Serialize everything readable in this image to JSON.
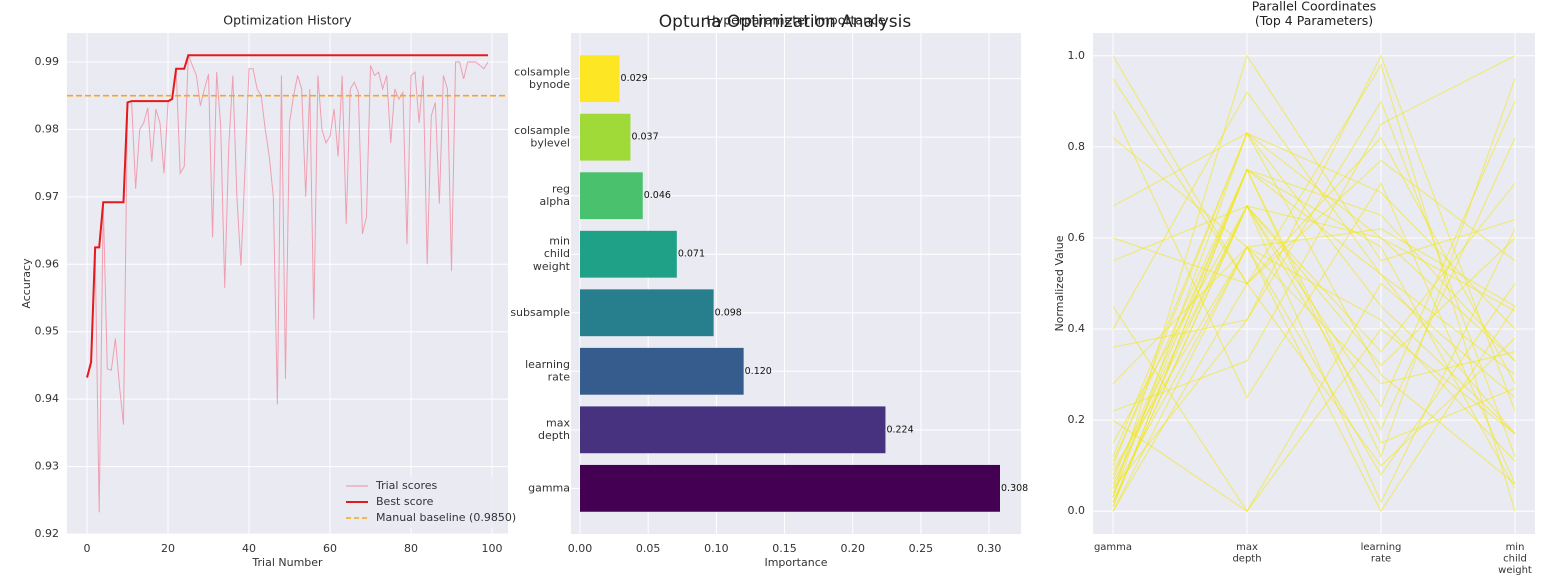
{
  "title": "Optuna Optimization Analysis",
  "chart_data": [
    {
      "type": "line",
      "title": "Optimization History",
      "xlabel": "Trial Number",
      "ylabel": "Accuracy",
      "xlim": [
        -4.95,
        103.95
      ],
      "xticks": [
        0,
        20,
        40,
        60,
        80,
        100
      ],
      "ylim": [
        0.92,
        0.9943
      ],
      "yticks": [
        0.92,
        0.93,
        0.94,
        0.95,
        0.96,
        0.97,
        0.98,
        0.99
      ],
      "grid": true,
      "x": [
        0,
        1,
        2,
        3,
        4,
        5,
        6,
        7,
        8,
        9,
        10,
        11,
        12,
        13,
        14,
        15,
        16,
        17,
        18,
        19,
        20,
        21,
        22,
        23,
        24,
        25,
        26,
        27,
        28,
        29,
        30,
        31,
        32,
        33,
        34,
        35,
        36,
        37,
        38,
        39,
        40,
        41,
        42,
        43,
        44,
        45,
        46,
        47,
        48,
        49,
        50,
        51,
        52,
        53,
        54,
        55,
        56,
        57,
        58,
        59,
        60,
        61,
        62,
        63,
        64,
        65,
        66,
        67,
        68,
        69,
        70,
        71,
        72,
        73,
        74,
        75,
        76,
        77,
        78,
        79,
        80,
        81,
        82,
        83,
        84,
        85,
        86,
        87,
        88,
        89,
        90,
        91,
        92,
        93,
        94,
        95,
        96,
        97,
        98,
        99
      ],
      "series": [
        {
          "name": "Trial scores",
          "color": "#f08ca0",
          "values": [
            0.9432,
            0.9455,
            0.9625,
            0.9232,
            0.9692,
            0.9445,
            0.9443,
            0.949,
            0.942,
            0.9362,
            0.984,
            0.9842,
            0.9712,
            0.98,
            0.981,
            0.9832,
            0.9752,
            0.983,
            0.981,
            0.9735,
            0.984,
            0.9845,
            0.989,
            0.9735,
            0.9745,
            0.991,
            0.9895,
            0.988,
            0.9835,
            0.986,
            0.9882,
            0.964,
            0.9885,
            0.9805,
            0.9565,
            0.9775,
            0.988,
            0.97,
            0.9598,
            0.974,
            0.989,
            0.989,
            0.986,
            0.985,
            0.98,
            0.976,
            0.97,
            0.9392,
            0.988,
            0.943,
            0.981,
            0.985,
            0.988,
            0.986,
            0.97,
            0.986,
            0.9518,
            0.988,
            0.98,
            0.978,
            0.979,
            0.983,
            0.976,
            0.988,
            0.966,
            0.986,
            0.987,
            0.9855,
            0.9645,
            0.967,
            0.9895,
            0.988,
            0.9885,
            0.986,
            0.988,
            0.978,
            0.986,
            0.9845,
            0.9855,
            0.963,
            0.988,
            0.9885,
            0.981,
            0.988,
            0.96,
            0.982,
            0.984,
            0.969,
            0.988,
            0.986,
            0.959,
            0.99,
            0.99,
            0.9875,
            0.99,
            0.99,
            0.99,
            0.9895,
            0.989,
            0.99
          ]
        },
        {
          "name": "Best score",
          "color": "#e31a1c",
          "values": [
            0.9432,
            0.9455,
            0.9625,
            0.9625,
            0.9692,
            0.9692,
            0.9692,
            0.9692,
            0.9692,
            0.9692,
            0.984,
            0.9842,
            0.9842,
            0.9842,
            0.9842,
            0.9842,
            0.9842,
            0.9842,
            0.9842,
            0.9842,
            0.9842,
            0.9845,
            0.989,
            0.989,
            0.989,
            0.991,
            0.991,
            0.991,
            0.991,
            0.991,
            0.991,
            0.991,
            0.991,
            0.991,
            0.991,
            0.991,
            0.991,
            0.991,
            0.991,
            0.991,
            0.991,
            0.991,
            0.991,
            0.991,
            0.991,
            0.991,
            0.991,
            0.991,
            0.991,
            0.991,
            0.991,
            0.991,
            0.991,
            0.991,
            0.991,
            0.991,
            0.991,
            0.991,
            0.991,
            0.991,
            0.991,
            0.991,
            0.991,
            0.991,
            0.991,
            0.991,
            0.991,
            0.991,
            0.991,
            0.991,
            0.991,
            0.991,
            0.991,
            0.991,
            0.991,
            0.991,
            0.991,
            0.991,
            0.991,
            0.991,
            0.991,
            0.991,
            0.991,
            0.991,
            0.991,
            0.991,
            0.991,
            0.991,
            0.991,
            0.991,
            0.991,
            0.991,
            0.991,
            0.991,
            0.991,
            0.991,
            0.991,
            0.991,
            0.991,
            0.991
          ]
        }
      ],
      "baseline": 0.985,
      "baseline_label": "Manual baseline (0.9850)",
      "baseline_color": "#f5a623",
      "legend": "lower right"
    },
    {
      "type": "barh",
      "title": "Hyperparameter Importance",
      "xlabel": "Importance",
      "categories": [
        "gamma",
        "max\ndepth",
        "learning\nrate",
        "subsample",
        "min\nchild\nweight",
        "reg\nalpha",
        "colsample\nbylevel",
        "colsample\nbynode"
      ],
      "values": [
        0.308,
        0.224,
        0.12,
        0.098,
        0.071,
        0.046,
        0.037,
        0.029
      ],
      "value_labels": [
        "0.308",
        "0.224",
        "0.120",
        "0.098",
        "0.071",
        "0.046",
        "0.037",
        "0.029"
      ],
      "colors": [
        "#440154",
        "#46327e",
        "#365c8d",
        "#277f8e",
        "#1fa187",
        "#4ac16d",
        "#a0da39",
        "#fde725"
      ],
      "xlim": [
        -0.0066,
        0.3234
      ],
      "xticks": [
        {
          "value": 0,
          "label": "0.00"
        },
        0.05,
        {
          "value": 0.1,
          "label": "0.10"
        },
        0.15,
        {
          "value": 0.2,
          "label": "0.20"
        },
        0.25,
        {
          "value": 0.3,
          "label": "0.30"
        }
      ],
      "grid": true
    },
    {
      "type": "parallel",
      "title": "Parallel Coordinates\n(Top 4 Parameters)",
      "ylabel": "Normalized Value",
      "categories": [
        "gamma",
        "max\ndepth",
        "learning\nrate",
        "min\nchild\nweight"
      ],
      "ylim": [
        -0.05,
        1.05
      ],
      "yticks": [
        {
          "value": 0,
          "label": "0.0"
        },
        0.2,
        0.4,
        0.6,
        0.8,
        {
          "value": 1,
          "label": "1.0"
        }
      ],
      "grid": true,
      "color": "#f2e70a",
      "lines": [
        [
          0.02,
          0.67,
          0.6,
          0.33
        ],
        [
          0.05,
          0.75,
          0.52,
          0.17
        ],
        [
          0.0,
          0.58,
          0.0,
          0.45
        ],
        [
          0.1,
          0.83,
          0.3,
          0.06
        ],
        [
          0.95,
          0.5,
          0.82,
          0.28
        ],
        [
          0.03,
          1.0,
          0.55,
          0.64
        ],
        [
          0.36,
          0.42,
          0.9,
          0.12
        ],
        [
          0.08,
          0.67,
          0.23,
          0.9
        ],
        [
          0.01,
          0.75,
          0.65,
          0.33
        ],
        [
          0.88,
          0.25,
          0.72,
          0.06
        ],
        [
          0.2,
          0.0,
          0.4,
          0.17
        ],
        [
          0.04,
          0.58,
          0.08,
          0.5
        ],
        [
          0.12,
          0.83,
          0.7,
          0.4
        ],
        [
          0.6,
          0.5,
          0.98,
          0.0
        ],
        [
          0.02,
          0.67,
          0.35,
          0.72
        ],
        [
          0.45,
          0.0,
          0.5,
          0.25
        ],
        [
          0.07,
          0.75,
          0.12,
          0.95
        ],
        [
          0.28,
          0.58,
          0.28,
          0.35
        ],
        [
          0.0,
          0.5,
          0.77,
          0.55
        ],
        [
          0.67,
          0.83,
          0.45,
          0.17
        ],
        [
          0.15,
          0.67,
          0.18,
          0.82
        ],
        [
          0.05,
          0.42,
          1.0,
          0.22
        ],
        [
          0.82,
          0.58,
          0.62,
          0.45
        ],
        [
          0.01,
          0.75,
          0.58,
          0.05
        ],
        [
          0.4,
          0.92,
          0.52,
          0.3
        ],
        [
          0.06,
          0.67,
          0.02,
          0.62
        ],
        [
          0.22,
          0.33,
          0.85,
          1.0
        ],
        [
          0.09,
          0.58,
          0.42,
          0.11
        ],
        [
          1.0,
          0.5,
          0.1,
          0.38
        ],
        [
          0.03,
          0.83,
          0.6,
          0.44
        ],
        [
          0.55,
          0.67,
          0.32,
          0.6
        ],
        [
          0.11,
          0.75,
          0.15,
          0.27
        ]
      ]
    }
  ]
}
